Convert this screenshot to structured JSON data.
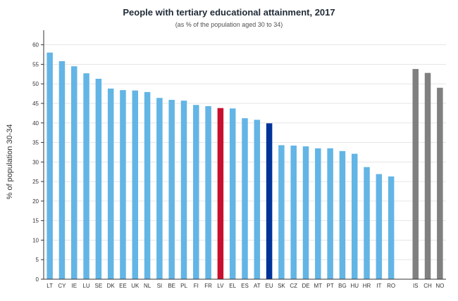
{
  "chart_data": {
    "type": "bar",
    "title": "People with tertiary educational attainment, 2017",
    "subtitle": "(as % of the population aged 30 to 34)",
    "xlabel": "",
    "ylabel": "% of population 30-34",
    "ylim": [
      0,
      63
    ],
    "yticks": [
      0,
      5,
      10,
      15,
      20,
      25,
      30,
      35,
      40,
      45,
      50,
      55,
      60
    ],
    "grid": true,
    "legend": "none",
    "categories": [
      "LT",
      "CY",
      "IE",
      "LU",
      "SE",
      "DK",
      "EE",
      "UK",
      "NL",
      "SI",
      "BE",
      "PL",
      "FI",
      "FR",
      "LV",
      "EL",
      "ES",
      "AT",
      "EU",
      "SK",
      "CZ",
      "DE",
      "MT",
      "PT",
      "BG",
      "HU",
      "HR",
      "IT",
      "RO",
      "",
      "IS",
      "CH",
      "NO"
    ],
    "values": [
      58.0,
      55.8,
      54.5,
      52.7,
      51.3,
      48.8,
      48.4,
      48.3,
      47.9,
      46.4,
      45.9,
      45.7,
      44.6,
      44.3,
      43.8,
      43.7,
      41.2,
      40.8,
      39.9,
      34.3,
      34.2,
      34.0,
      33.5,
      33.5,
      32.8,
      32.1,
      28.7,
      26.9,
      26.3,
      null,
      53.8,
      52.8,
      49.0
    ],
    "bar_colors": [
      "#63b5e5",
      "#63b5e5",
      "#63b5e5",
      "#63b5e5",
      "#63b5e5",
      "#63b5e5",
      "#63b5e5",
      "#63b5e5",
      "#63b5e5",
      "#63b5e5",
      "#63b5e5",
      "#63b5e5",
      "#63b5e5",
      "#63b5e5",
      "#c8102e",
      "#63b5e5",
      "#63b5e5",
      "#63b5e5",
      "#003399",
      "#63b5e5",
      "#63b5e5",
      "#63b5e5",
      "#63b5e5",
      "#63b5e5",
      "#63b5e5",
      "#63b5e5",
      "#63b5e5",
      "#63b5e5",
      "#63b5e5",
      "",
      "#808080",
      "#808080",
      "#808080"
    ],
    "colors": {
      "default": "#63b5e5",
      "highlight_lv": "#c8102e",
      "eu_average": "#003399",
      "non_eu": "#808080"
    }
  }
}
